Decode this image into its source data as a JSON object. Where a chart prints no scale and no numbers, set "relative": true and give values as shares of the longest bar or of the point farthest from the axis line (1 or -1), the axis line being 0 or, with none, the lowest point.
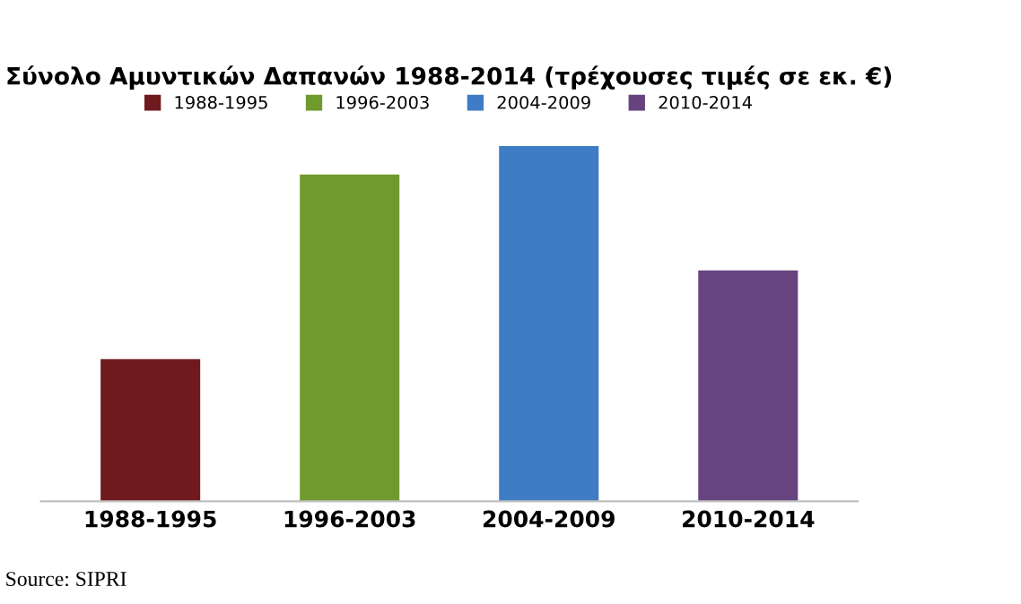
{
  "chart_data": {
    "type": "bar",
    "title": "Σύνολο Αμυντικών Δαπανών 1988-2014 (τρέχουσες τιμές σε εκ. €)",
    "categories": [
      "1988-1995",
      "1996-2003",
      "2004-2009",
      "2010-2014"
    ],
    "series": [
      {
        "name": "1988-1995",
        "color": "#6e1a1e",
        "values": [
          0.4,
          null,
          null,
          null
        ]
      },
      {
        "name": "1996-2003",
        "color": "#6f9a2e",
        "values": [
          null,
          0.92,
          null,
          null
        ]
      },
      {
        "name": "2004-2009",
        "color": "#3f7cc6",
        "values": [
          null,
          null,
          1,
          null
        ]
      },
      {
        "name": "2010-2014",
        "color": "#674380",
        "values": [
          null,
          null,
          null,
          0.65
        ]
      }
    ],
    "relative": true,
    "legend": "top",
    "annotations": [
      "Source: SIPRI"
    ]
  }
}
